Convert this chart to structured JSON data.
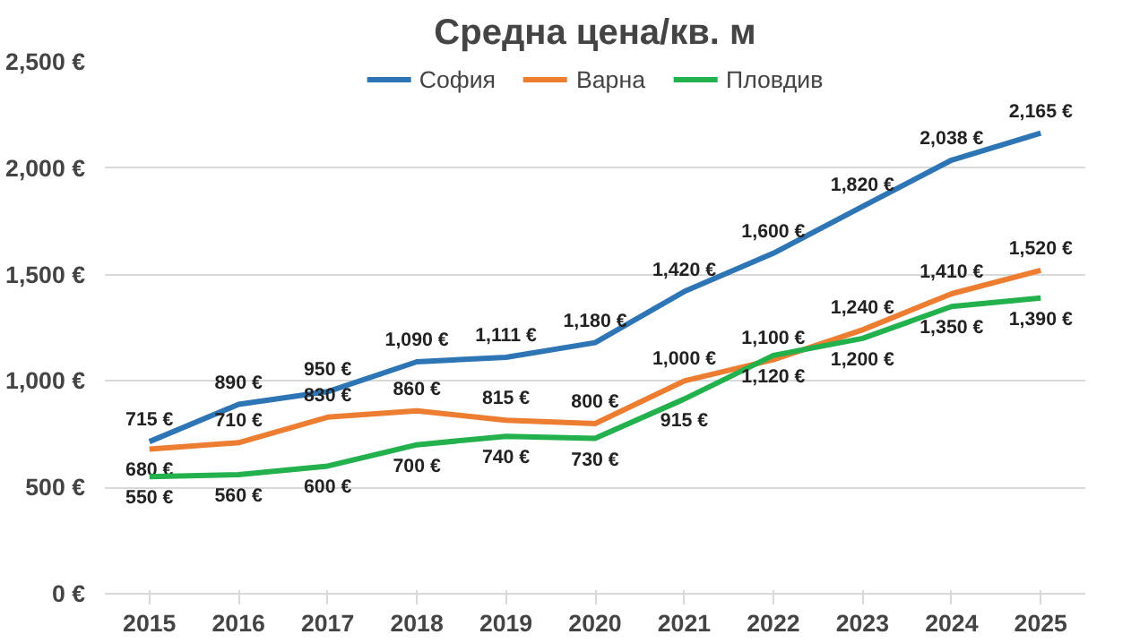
{
  "chart_data": {
    "type": "line",
    "title": "Средна цена/кв. м",
    "categories": [
      "2015",
      "2016",
      "2017",
      "2018",
      "2019",
      "2020",
      "2021",
      "2022",
      "2023",
      "2024",
      "2025"
    ],
    "series": [
      {
        "name": "София",
        "color": "#2e75b6",
        "values": [
          715,
          890,
          950,
          1090,
          1111,
          1180,
          1420,
          1600,
          1820,
          2038,
          2165
        ],
        "value_labels": [
          "715 €",
          "890 €",
          "950 €",
          "1,090 €",
          "1,111 €",
          "1,180 €",
          "1,420 €",
          "1,600 €",
          "1,820 €",
          "2,038 €",
          "2,165 €"
        ]
      },
      {
        "name": "Варна",
        "color": "#ed7d31",
        "values": [
          680,
          710,
          830,
          860,
          815,
          800,
          1000,
          1100,
          1240,
          1410,
          1520
        ],
        "value_labels": [
          "680 €",
          "710 €",
          "830 €",
          "860 €",
          "815 €",
          "800 €",
          "1,000 €",
          "1,100 €",
          "1,240 €",
          "1,410 €",
          "1,520 €"
        ]
      },
      {
        "name": "Пловдив",
        "color": "#22b14c",
        "values": [
          550,
          560,
          600,
          700,
          740,
          730,
          915,
          1120,
          1200,
          1350,
          1390
        ],
        "value_labels": [
          "550 €",
          "560 €",
          "600 €",
          "700 €",
          "740 €",
          "730 €",
          "915 €",
          "1,120 €",
          "1,200 €",
          "1,350 €",
          "1,390 €"
        ]
      }
    ],
    "ylim": [
      0,
      2500
    ],
    "yticks": [
      {
        "value": 0,
        "label": "0 €"
      },
      {
        "value": 500,
        "label": "500 €"
      },
      {
        "value": 1000,
        "label": "1,000 €"
      },
      {
        "value": 1500,
        "label": "1,500 €"
      },
      {
        "value": 2000,
        "label": "2,000 €"
      },
      {
        "value": 2500,
        "label": "2,500 €"
      }
    ],
    "grid": "y",
    "legend": "top",
    "marker": "none",
    "line_style": "solid"
  }
}
